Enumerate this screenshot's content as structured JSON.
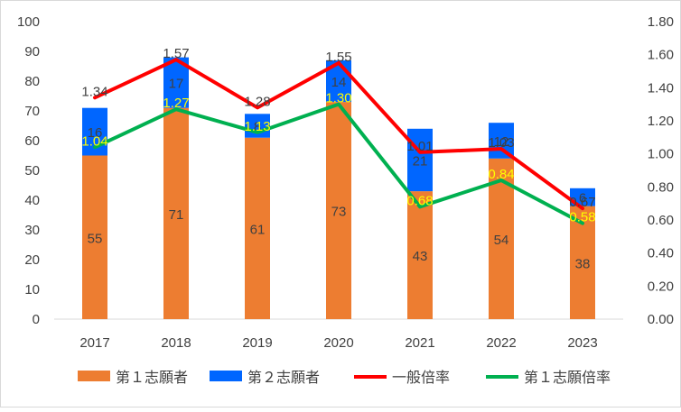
{
  "chart_data": {
    "type": "bar",
    "categories": [
      "2017",
      "2018",
      "2019",
      "2020",
      "2021",
      "2022",
      "2023"
    ],
    "bar_series": [
      {
        "name": "第１志願者",
        "values": [
          55,
          71,
          61,
          73,
          43,
          54,
          38
        ],
        "color": "#ED7D31"
      },
      {
        "name": "第２志願者",
        "values": [
          16,
          17,
          8,
          14,
          21,
          12,
          6
        ],
        "color": "#0066FF"
      }
    ],
    "line_series": [
      {
        "name": "一般倍率",
        "values": [
          1.34,
          1.57,
          1.28,
          1.55,
          1.01,
          1.03,
          0.67
        ],
        "color": "#FF0000",
        "label_color": "#404040",
        "labels": [
          "1.34",
          "1.57",
          "1.28",
          "1.55",
          "1.01",
          "1.03",
          "0.67"
        ]
      },
      {
        "name": "第１志願倍率",
        "values": [
          1.04,
          1.27,
          1.13,
          1.3,
          0.68,
          0.84,
          0.58
        ],
        "color": "#00B050",
        "label_color": "#FFFF00",
        "labels": [
          "1.04",
          "1.27",
          "1.13",
          "1.30",
          "0.68",
          "0.84",
          "0.58"
        ]
      }
    ],
    "left_axis": {
      "ylim": [
        0,
        100
      ],
      "ticks": [
        "0",
        "10",
        "20",
        "30",
        "40",
        "50",
        "60",
        "70",
        "80",
        "90",
        "100"
      ]
    },
    "right_axis": {
      "ylim": [
        0,
        1.8
      ],
      "ticks": [
        "0.00",
        "0.20",
        "0.40",
        "0.60",
        "0.80",
        "1.00",
        "1.20",
        "1.40",
        "1.60",
        "1.80"
      ]
    },
    "legend": [
      "第１志願者",
      "第２志願者",
      "一般倍率",
      "第１志願倍率"
    ],
    "legend_position": "bottom",
    "grid": false
  }
}
